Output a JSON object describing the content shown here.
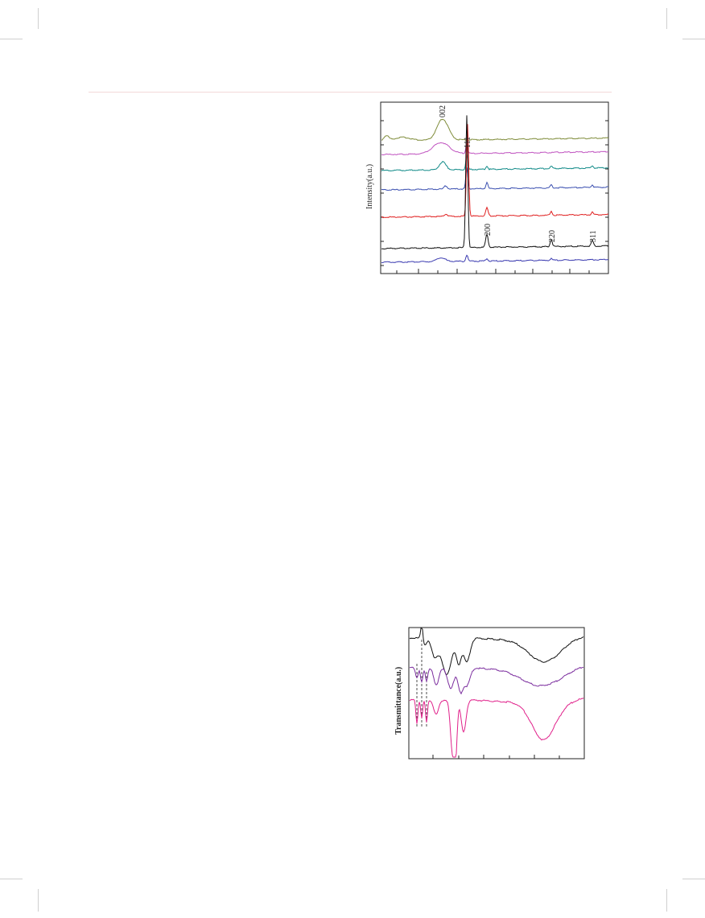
{
  "figure_xrd": {
    "ylabel": "Intensity(a.u.)",
    "peak_labels": [
      "002",
      "111",
      "200",
      "220",
      "311"
    ]
  },
  "figure_ftir": {
    "ylabel": "Transmittance(a.u.)"
  },
  "chart_data": [
    {
      "type": "line",
      "title": "",
      "xlabel": "",
      "ylabel": "Intensity(a.u.)",
      "annotations": [
        "002",
        "111",
        "200",
        "220",
        "311"
      ],
      "series": [
        {
          "color": "#7f8c3a"
        },
        {
          "color": "#c054c0"
        },
        {
          "color": "#108a88"
        },
        {
          "color": "#3a4fb0"
        },
        {
          "color": "#e02020"
        },
        {
          "color": "#111111"
        },
        {
          "color": "#3a3ab0"
        }
      ],
      "grid": false
    },
    {
      "type": "line",
      "title": "",
      "xlabel": "",
      "ylabel": "Transmittance(a.u.)",
      "series": [
        {
          "color": "#111111"
        },
        {
          "color": "#7b2d9e"
        },
        {
          "color": "#e0208a"
        }
      ],
      "grid": false
    }
  ]
}
